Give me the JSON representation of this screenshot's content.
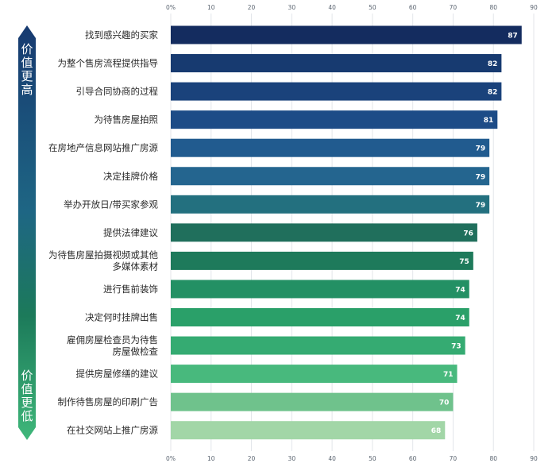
{
  "chart_data": {
    "type": "bar",
    "orientation": "horizontal",
    "categories": [
      [
        "找到感兴趣的买家"
      ],
      [
        "为整个售房流程提供指导"
      ],
      [
        "引导合同协商的过程"
      ],
      [
        "为待售房屋拍照"
      ],
      [
        "在房地产信息网站推广房源"
      ],
      [
        "决定挂牌价格"
      ],
      [
        "举办开放日/带买家参观"
      ],
      [
        "提供法律建议"
      ],
      [
        "为待售房屋拍摄视频或其他",
        "多媒体素材"
      ],
      [
        "进行售前装饰"
      ],
      [
        "决定何时挂牌出售"
      ],
      [
        "雇佣房屋检查员为待售",
        "房屋做检查"
      ],
      [
        "提供房屋修缮的建议"
      ],
      [
        "制作待售房屋的印刷广告"
      ],
      [
        "在社交网站上推广房源"
      ]
    ],
    "values": [
      87,
      82,
      82,
      81,
      79,
      79,
      79,
      76,
      75,
      74,
      74,
      73,
      71,
      70,
      68
    ],
    "value_labels": [
      "87",
      "82",
      "82",
      "81",
      "79",
      "79",
      "79",
      "76",
      "75",
      "74",
      "74",
      "73",
      "71",
      "70",
      "68"
    ],
    "xlim": [
      0,
      90
    ],
    "ticks": [
      0,
      10,
      20,
      30,
      40,
      50,
      60,
      70,
      80,
      90
    ],
    "tick_labels": [
      "0%",
      "10",
      "20",
      "30",
      "40",
      "50",
      "60",
      "70",
      "80",
      "90"
    ],
    "grid": true,
    "bar_colors": [
      "#142c5f",
      "#173a70",
      "#1a427b",
      "#1d4c87",
      "#215b8f",
      "#24658f",
      "#23707f",
      "#206f5c",
      "#1e7a5b",
      "#239064",
      "#2aa069",
      "#35ab72",
      "#48b97d",
      "#6fc28c",
      "#a2d6a7"
    ],
    "side_arrow": {
      "top_label": [
        "价",
        "值",
        "更",
        "高"
      ],
      "bottom_label": [
        "价",
        "值",
        "更",
        "低"
      ],
      "color_top": "#173a70",
      "color_bottom": "#3fb77a"
    }
  }
}
